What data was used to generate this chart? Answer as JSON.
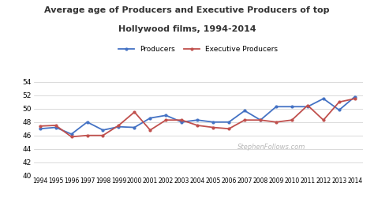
{
  "title_line1": "Average age of Producers and Executive Producers of top",
  "title_line2": "Hollywood films, 1994-2014",
  "years": [
    1994,
    1995,
    1996,
    1997,
    1998,
    1999,
    2000,
    2001,
    2002,
    2003,
    2004,
    2005,
    2006,
    2007,
    2008,
    2009,
    2010,
    2011,
    2012,
    2013,
    2014
  ],
  "producers": [
    47.0,
    47.2,
    46.2,
    48.0,
    46.8,
    47.3,
    47.2,
    48.6,
    49.0,
    48.0,
    48.3,
    48.0,
    48.0,
    49.7,
    48.3,
    50.3,
    50.3,
    50.3,
    51.5,
    49.8,
    51.8
  ],
  "exec_producers": [
    47.4,
    47.5,
    45.8,
    46.0,
    46.0,
    47.5,
    49.5,
    46.8,
    48.3,
    48.3,
    47.5,
    47.2,
    47.0,
    48.3,
    48.3,
    48.0,
    48.3,
    50.5,
    48.3,
    51.0,
    51.5
  ],
  "producers_color": "#4472C4",
  "exec_producers_color": "#C0504D",
  "ylim": [
    40,
    55
  ],
  "yticks": [
    40,
    42,
    44,
    46,
    48,
    50,
    52,
    54
  ],
  "background_color": "#ffffff",
  "watermark": "StephenFollows.com",
  "legend_labels": [
    "Producers",
    "Executive Producers"
  ]
}
